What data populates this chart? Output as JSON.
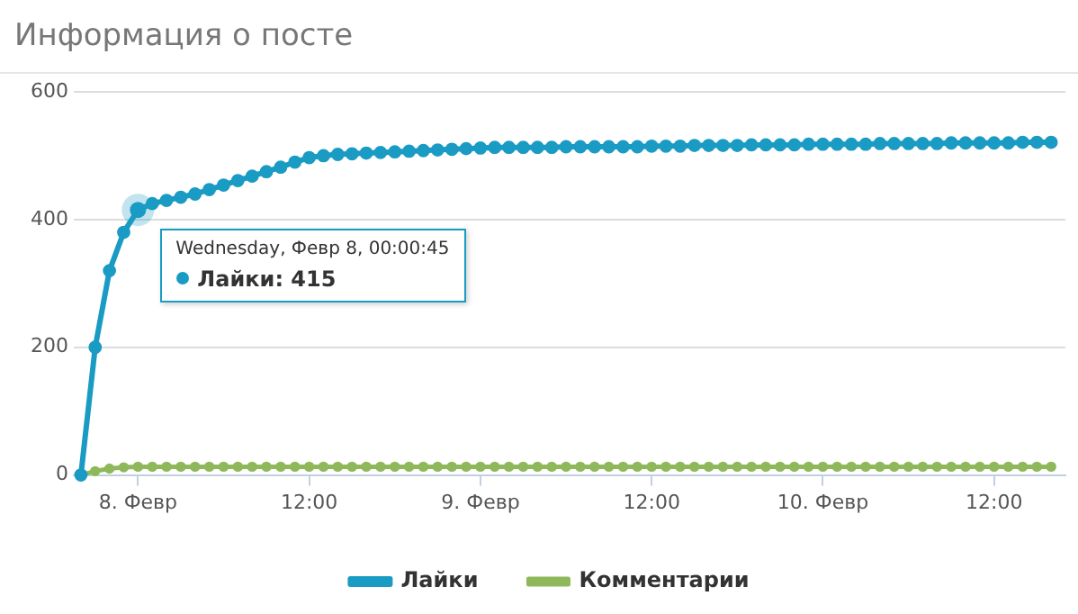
{
  "chart_data": {
    "type": "line",
    "title": "Информация о посте",
    "x": [
      "--02-07T20:00",
      "--02-07T21:00",
      "--02-07T22:00",
      "--02-07T23:00",
      "--02-08T00:00",
      "--02-08T01:00",
      "--02-08T02:00",
      "--02-08T03:00",
      "--02-08T04:00",
      "--02-08T05:00",
      "--02-08T06:00",
      "--02-08T07:00",
      "--02-08T08:00",
      "--02-08T09:00",
      "--02-08T10:00",
      "--02-08T11:00",
      "--02-08T12:00",
      "--02-08T13:00",
      "--02-08T14:00",
      "--02-08T15:00",
      "--02-08T16:00",
      "--02-08T17:00",
      "--02-08T18:00",
      "--02-08T19:00",
      "--02-08T20:00",
      "--02-08T21:00",
      "--02-08T22:00",
      "--02-08T23:00",
      "--02-09T00:00",
      "--02-09T01:00",
      "--02-09T02:00",
      "--02-09T03:00",
      "--02-09T04:00",
      "--02-09T05:00",
      "--02-09T06:00",
      "--02-09T07:00",
      "--02-09T08:00",
      "--02-09T09:00",
      "--02-09T10:00",
      "--02-09T11:00",
      "--02-09T12:00",
      "--02-09T13:00",
      "--02-09T14:00",
      "--02-09T15:00",
      "--02-09T16:00",
      "--02-09T17:00",
      "--02-09T18:00",
      "--02-09T19:00",
      "--02-09T20:00",
      "--02-09T21:00",
      "--02-09T22:00",
      "--02-09T23:00",
      "--02-10T00:00",
      "--02-10T01:00",
      "--02-10T02:00",
      "--02-10T03:00",
      "--02-10T04:00",
      "--02-10T05:00",
      "--02-10T06:00",
      "--02-10T07:00",
      "--02-10T08:00",
      "--02-10T09:00",
      "--02-10T10:00",
      "--02-10T11:00",
      "--02-10T12:00",
      "--02-10T13:00",
      "--02-10T14:00",
      "--02-10T15:00",
      "--02-10T16:00"
    ],
    "series": [
      {
        "name": "Лайки",
        "color": "#1a9bc4",
        "values": [
          0,
          200,
          320,
          380,
          415,
          425,
          430,
          435,
          440,
          447,
          454,
          461,
          468,
          475,
          482,
          490,
          497,
          500,
          502,
          503,
          504,
          505,
          506,
          507,
          508,
          509,
          510,
          511,
          512,
          513,
          513,
          513,
          513,
          513,
          514,
          514,
          514,
          514,
          514,
          514,
          515,
          515,
          515,
          516,
          516,
          516,
          516,
          517,
          517,
          517,
          517,
          518,
          518,
          518,
          518,
          518,
          519,
          519,
          519,
          519,
          519,
          520,
          520,
          520,
          520,
          520,
          521,
          521,
          521
        ]
      },
      {
        "name": "Комментарии",
        "color": "#8fb85a",
        "values": [
          0,
          6,
          10,
          12,
          13,
          13,
          13,
          13,
          13,
          13,
          13,
          13,
          13,
          13,
          13,
          13,
          13,
          13,
          13,
          13,
          13,
          13,
          13,
          13,
          13,
          13,
          13,
          13,
          13,
          13,
          13,
          13,
          13,
          13,
          13,
          13,
          13,
          13,
          13,
          13,
          13,
          13,
          13,
          13,
          13,
          13,
          13,
          13,
          13,
          13,
          13,
          13,
          13,
          13,
          13,
          13,
          13,
          13,
          13,
          13,
          13,
          13,
          13,
          13,
          13,
          13,
          13,
          13,
          13
        ]
      }
    ],
    "xlim": [
      "--02-07T19:30",
      "--02-10T17:00"
    ],
    "xticks": [
      {
        "value": "--02-08T00:00",
        "label": "8. Февр"
      },
      {
        "value": "--02-08T12:00",
        "label": "12:00"
      },
      {
        "value": "--02-09T00:00",
        "label": "9. Февр"
      },
      {
        "value": "--02-09T12:00",
        "label": "12:00"
      },
      {
        "value": "--02-10T00:00",
        "label": "10. Февр"
      },
      {
        "value": "--02-10T12:00",
        "label": "12:00"
      }
    ],
    "ylim": [
      0,
      600
    ],
    "yticks": [
      0,
      200,
      400,
      600
    ],
    "grid": "y",
    "legend": "bottom",
    "marker": "circle",
    "line_style": "solid",
    "annotations": [
      {
        "text": "Wednesday, Февр 8, 00:00:45",
        "x": "--02-08T00:00",
        "y": 415
      },
      "Лайки: 415"
    ]
  }
}
